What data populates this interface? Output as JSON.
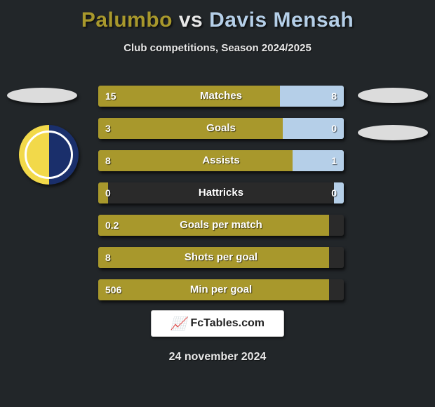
{
  "title": {
    "player1": "Palumbo",
    "vs": "vs",
    "player2": "Davis Mensah"
  },
  "subtitle": "Club competitions, Season 2024/2025",
  "colors": {
    "player1": "#a8982c",
    "player2": "#b5cfe8",
    "background": "#222629",
    "text": "#ffffff"
  },
  "bars": [
    {
      "label": "Matches",
      "left_val": "15",
      "right_val": "8",
      "left_pct": 74,
      "right_pct": 26
    },
    {
      "label": "Goals",
      "left_val": "3",
      "right_val": "0",
      "left_pct": 75,
      "right_pct": 25
    },
    {
      "label": "Assists",
      "left_val": "8",
      "right_val": "1",
      "left_pct": 79,
      "right_pct": 21
    },
    {
      "label": "Hattricks",
      "left_val": "0",
      "right_val": "0",
      "left_pct": 4,
      "right_pct": 4
    },
    {
      "label": "Goals per match",
      "left_val": "0.2",
      "right_val": "",
      "left_pct": 94,
      "right_pct": 0
    },
    {
      "label": "Shots per goal",
      "left_val": "8",
      "right_val": "",
      "left_pct": 94,
      "right_pct": 0
    },
    {
      "label": "Min per goal",
      "left_val": "506",
      "right_val": "",
      "left_pct": 94,
      "right_pct": 0
    }
  ],
  "footer": {
    "site": "FcTables.com"
  },
  "date": "24 november 2024"
}
